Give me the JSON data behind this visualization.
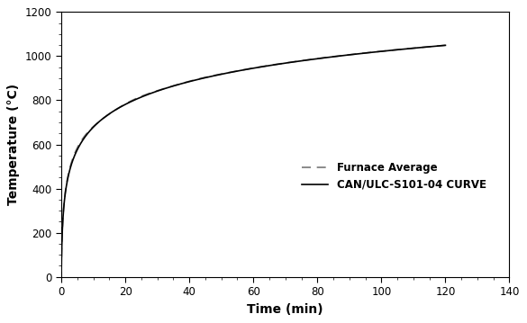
{
  "title": "",
  "xlabel": "Time (min)",
  "ylabel": "Temperature (°C)",
  "xlim": [
    0,
    140
  ],
  "ylim": [
    0,
    1200
  ],
  "xticks": [
    0,
    20,
    40,
    60,
    80,
    100,
    120,
    140
  ],
  "yticks": [
    0,
    200,
    400,
    600,
    800,
    1000,
    1200
  ],
  "legend_labels": [
    "CAN/ULC-S101-04 CURVE",
    "Furnace Average"
  ],
  "line_color": "#000000",
  "furnace_color": "#777777",
  "background_color": "#ffffff",
  "legend_fontsize": 8.5,
  "axis_label_fontsize": 10,
  "tick_fontsize": 8.5
}
